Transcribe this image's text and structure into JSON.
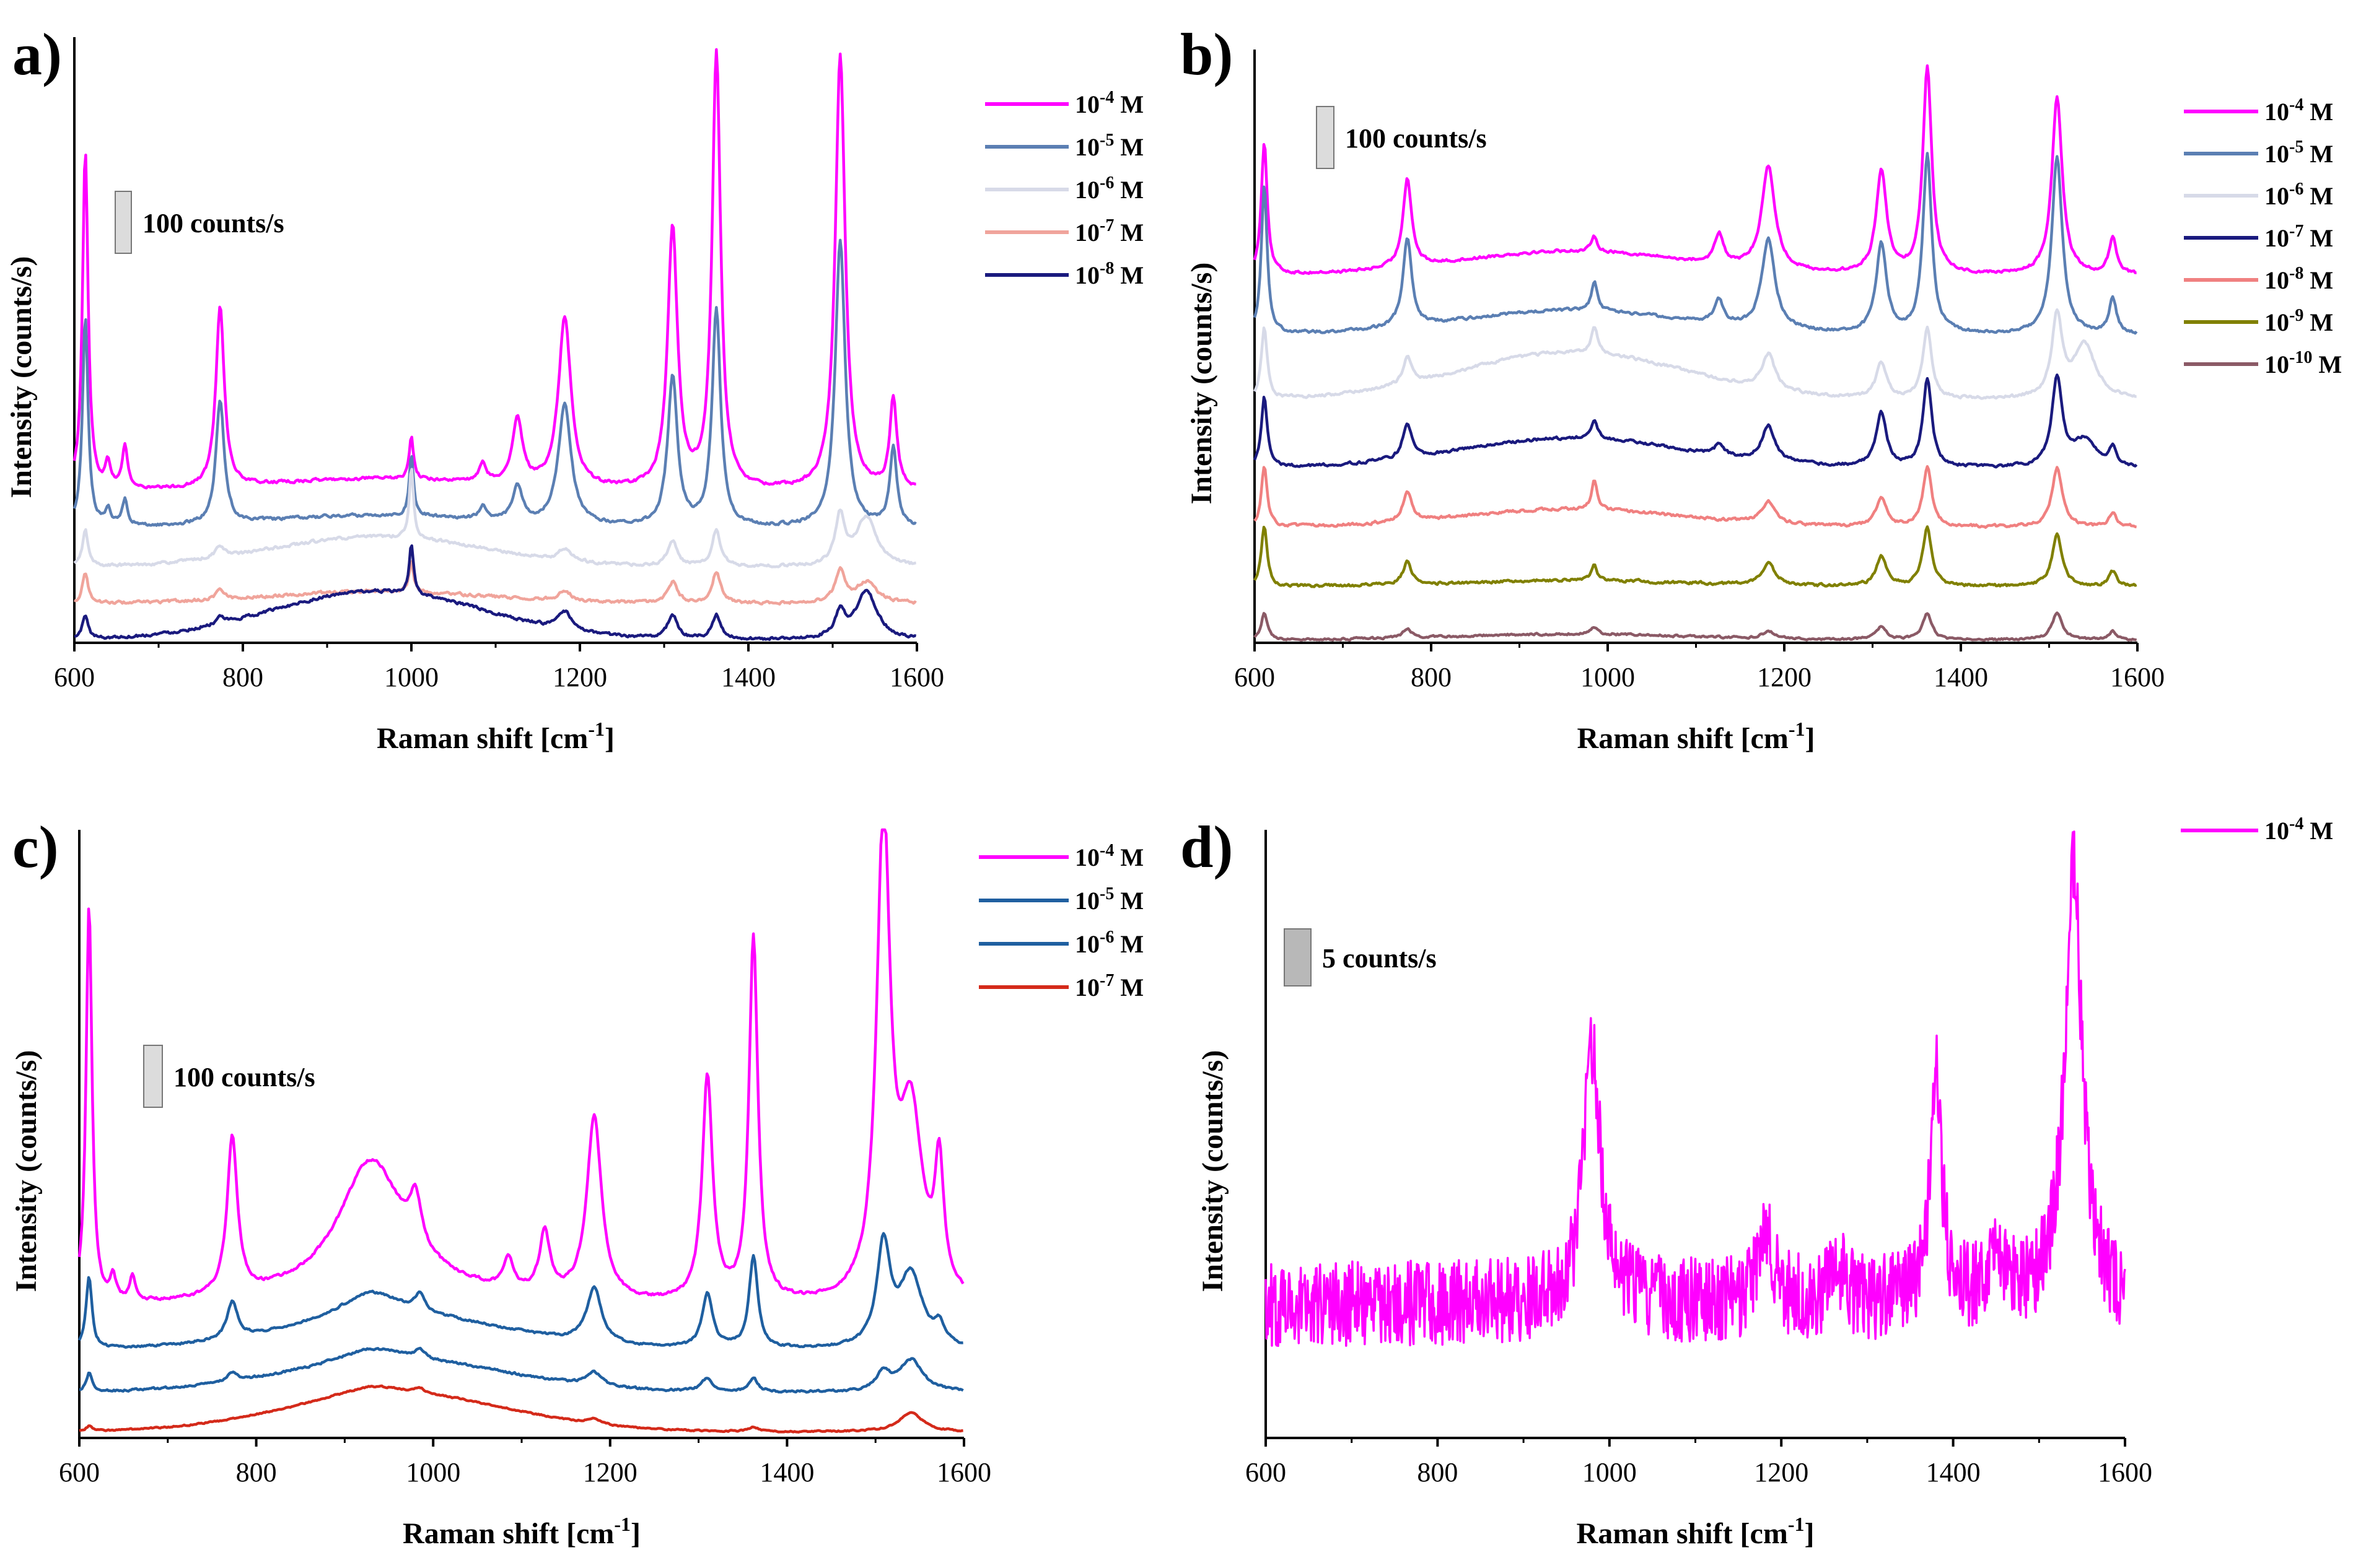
{
  "figure": {
    "x_axis_title": "Raman shift [cm",
    "x_axis_unit_exp": "-1",
    "x_axis_close": "]",
    "y_axis_title": "Intensity (counts/s)"
  },
  "chart_data": [
    {
      "type": "line",
      "panel_label": "a)",
      "xlabel": "Raman shift [cm-1]",
      "ylabel": "Intensity (counts/s)",
      "xlim": [
        600,
        1600
      ],
      "xticks": [
        "600",
        "800",
        "1000",
        "1200",
        "1400",
        "1600"
      ],
      "ylim": [
        0,
        1
      ],
      "scale_bar": {
        "label": "100 counts/s",
        "value_counts_per_s": 100,
        "height_in_y_units": 0.07
      },
      "series": [
        {
          "name": "10-4 M",
          "base": "10",
          "exp": "-4",
          "unit": "M",
          "color": "#ff00ff",
          "offset": 0.25,
          "amp": 1.0,
          "noise": 0.004,
          "broad": 0.02,
          "peaks": [
            [
              613,
              0.56,
              4
            ],
            [
              640,
              0.04,
              4
            ],
            [
              660,
              0.07,
              4
            ],
            [
              773,
              0.3,
              6
            ],
            [
              1000,
              0.07,
              3
            ],
            [
              1085,
              0.03,
              5
            ],
            [
              1126,
              0.11,
              7
            ],
            [
              1182,
              0.28,
              9
            ],
            [
              1310,
              0.43,
              7
            ],
            [
              1362,
              0.72,
              6
            ],
            [
              1509,
              0.72,
              7
            ],
            [
              1572,
              0.15,
              5
            ]
          ]
        },
        {
          "name": "10-5 M",
          "base": "10",
          "exp": "-5",
          "unit": "M",
          "color": "#5b7fb3",
          "offset": 0.19,
          "amp": 0.72,
          "noise": 0.004,
          "broad": 0.02,
          "peaks": [
            [
              613,
              0.48,
              4
            ],
            [
              640,
              0.04,
              4
            ],
            [
              660,
              0.06,
              4
            ],
            [
              773,
              0.28,
              6
            ],
            [
              1000,
              0.14,
              3
            ],
            [
              1085,
              0.03,
              5
            ],
            [
              1126,
              0.08,
              7
            ],
            [
              1182,
              0.28,
              9
            ],
            [
              1310,
              0.34,
              7
            ],
            [
              1362,
              0.5,
              6
            ],
            [
              1509,
              0.66,
              7
            ],
            [
              1572,
              0.18,
              5
            ]
          ]
        },
        {
          "name": "10-6 M",
          "base": "10",
          "exp": "-6",
          "unit": "M",
          "color": "#d7dae8",
          "offset": 0.125,
          "amp": 0.2,
          "noise": 0.004,
          "broad": 0.05,
          "peaks": [
            [
              613,
              0.3,
              4
            ],
            [
              773,
              0.1,
              6
            ],
            [
              1000,
              0.6,
              3
            ],
            [
              1182,
              0.1,
              9
            ],
            [
              1310,
              0.2,
              7
            ],
            [
              1362,
              0.3,
              6
            ],
            [
              1509,
              0.4,
              7
            ],
            [
              1540,
              0.4,
              15
            ]
          ]
        },
        {
          "name": "10-7 M",
          "base": "10",
          "exp": "-7",
          "unit": "M",
          "color": "#f0a49b",
          "offset": 0.065,
          "amp": 0.17,
          "noise": 0.004,
          "broad": 0.02,
          "peaks": [
            [
              613,
              0.3,
              4
            ],
            [
              773,
              0.1,
              6
            ],
            [
              1000,
              0.3,
              3
            ],
            [
              1182,
              0.1,
              9
            ],
            [
              1310,
              0.2,
              7
            ],
            [
              1362,
              0.3,
              6
            ],
            [
              1509,
              0.3,
              7
            ],
            [
              1540,
              0.2,
              15
            ]
          ]
        },
        {
          "name": "10-8 M",
          "base": "10",
          "exp": "-8",
          "unit": "M",
          "color": "#1a1a7e",
          "offset": 0.005,
          "amp": 0.2,
          "noise": 0.004,
          "broad": 0.08,
          "peaks": [
            [
              613,
              0.2,
              4
            ],
            [
              773,
              0.05,
              6
            ],
            [
              1000,
              0.4,
              3
            ],
            [
              1182,
              0.15,
              9
            ],
            [
              1310,
              0.2,
              7
            ],
            [
              1362,
              0.2,
              6
            ],
            [
              1509,
              0.2,
              7
            ],
            [
              1540,
              0.4,
              15
            ]
          ]
        }
      ]
    },
    {
      "type": "line",
      "panel_label": "b)",
      "xlabel": "Raman shift [cm-1]",
      "ylabel": "Intensity (counts/s)",
      "xlim": [
        600,
        1600
      ],
      "xticks": [
        "600",
        "800",
        "1000",
        "1200",
        "1400",
        "1600"
      ],
      "ylim": [
        0,
        1
      ],
      "scale_bar": {
        "label": "100 counts/s",
        "value_counts_per_s": 100,
        "height_in_y_units": 0.07
      },
      "series": [
        {
          "name": "10-4 M",
          "base": "10",
          "exp": "-4",
          "unit": "M",
          "color": "#ff00ff",
          "offset": 0.62,
          "amp": 0.5,
          "noise": 0.004,
          "broad": 0.04,
          "peaks": [
            [
              611,
              0.45,
              4
            ],
            [
              773,
              0.3,
              6
            ],
            [
              985,
              0.05,
              4
            ],
            [
              1126,
              0.1,
              6
            ],
            [
              1182,
              0.35,
              9
            ],
            [
              1310,
              0.35,
              7
            ],
            [
              1362,
              0.7,
              6
            ],
            [
              1509,
              0.6,
              7
            ],
            [
              1572,
              0.12,
              5
            ]
          ]
        },
        {
          "name": "10-5 M",
          "base": "10",
          "exp": "-5",
          "unit": "M",
          "color": "#5b7fb3",
          "offset": 0.52,
          "amp": 0.5,
          "noise": 0.004,
          "broad": 0.04,
          "peaks": [
            [
              611,
              0.5,
              4
            ],
            [
              773,
              0.3,
              6
            ],
            [
              985,
              0.1,
              4
            ],
            [
              1126,
              0.08,
              6
            ],
            [
              1182,
              0.3,
              9
            ],
            [
              1310,
              0.3,
              7
            ],
            [
              1362,
              0.6,
              6
            ],
            [
              1509,
              0.6,
              7
            ],
            [
              1572,
              0.12,
              5
            ]
          ]
        },
        {
          "name": "10-6 M",
          "base": "10",
          "exp": "-6",
          "unit": "M",
          "color": "#d7dae8",
          "offset": 0.41,
          "amp": 0.3,
          "noise": 0.004,
          "broad": 0.08,
          "peaks": [
            [
              611,
              0.4,
              4
            ],
            [
              773,
              0.15,
              6
            ],
            [
              985,
              0.15,
              4
            ],
            [
              1182,
              0.2,
              9
            ],
            [
              1310,
              0.2,
              7
            ],
            [
              1362,
              0.4,
              6
            ],
            [
              1509,
              0.45,
              7
            ],
            [
              1540,
              0.3,
              15
            ]
          ]
        },
        {
          "name": "10-7 M",
          "base": "10",
          "exp": "-7",
          "unit": "M",
          "color": "#1a1a7e",
          "offset": 0.295,
          "amp": 0.3,
          "noise": 0.004,
          "broad": 0.05,
          "peaks": [
            [
              611,
              0.4,
              4
            ],
            [
              773,
              0.2,
              6
            ],
            [
              985,
              0.1,
              4
            ],
            [
              1126,
              0.06,
              6
            ],
            [
              1182,
              0.2,
              9
            ],
            [
              1310,
              0.3,
              7
            ],
            [
              1362,
              0.5,
              6
            ],
            [
              1509,
              0.5,
              7
            ],
            [
              1540,
              0.15,
              15
            ],
            [
              1572,
              0.1,
              5
            ]
          ]
        },
        {
          "name": "10-8 M",
          "base": "10",
          "exp": "-8",
          "unit": "M",
          "color": "#f08080",
          "offset": 0.195,
          "amp": 0.25,
          "noise": 0.004,
          "broad": 0.03,
          "peaks": [
            [
              611,
              0.4,
              4
            ],
            [
              773,
              0.2,
              6
            ],
            [
              985,
              0.2,
              4
            ],
            [
              1182,
              0.15,
              9
            ],
            [
              1310,
              0.2,
              7
            ],
            [
              1362,
              0.4,
              6
            ],
            [
              1509,
              0.4,
              7
            ],
            [
              1572,
              0.1,
              5
            ]
          ]
        },
        {
          "name": "10-9 M",
          "base": "10",
          "exp": "-9",
          "unit": "M",
          "color": "#808000",
          "offset": 0.095,
          "amp": 0.25,
          "noise": 0.004,
          "broad": 0.01,
          "peaks": [
            [
              611,
              0.4,
              4
            ],
            [
              773,
              0.15,
              6
            ],
            [
              985,
              0.1,
              4
            ],
            [
              1182,
              0.15,
              9
            ],
            [
              1310,
              0.2,
              7
            ],
            [
              1362,
              0.4,
              6
            ],
            [
              1509,
              0.35,
              7
            ],
            [
              1572,
              0.1,
              5
            ]
          ]
        },
        {
          "name": "10-10 M",
          "base": "10",
          "exp": "-10",
          "unit": "M",
          "color": "#8b5a66",
          "offset": 0.005,
          "amp": 0.15,
          "noise": 0.003,
          "broad": 0.01,
          "peaks": [
            [
              611,
              0.3,
              4
            ],
            [
              773,
              0.1,
              6
            ],
            [
              985,
              0.08,
              4
            ],
            [
              1182,
              0.08,
              9
            ],
            [
              1310,
              0.15,
              7
            ],
            [
              1362,
              0.3,
              6
            ],
            [
              1509,
              0.3,
              7
            ],
            [
              1572,
              0.1,
              5
            ]
          ]
        }
      ]
    },
    {
      "type": "line",
      "panel_label": "c)",
      "xlabel": "Raman shift [cm-1]",
      "ylabel": "Intensity (counts/s)",
      "xlim": [
        600,
        1600
      ],
      "xticks": [
        "600",
        "800",
        "1000",
        "1200",
        "1400",
        "1600"
      ],
      "ylim": [
        0,
        1
      ],
      "scale_bar": {
        "label": "100 counts/s",
        "value_counts_per_s": 100,
        "height_in_y_units": 0.1
      },
      "series": [
        {
          "name": "10-4 M",
          "base": "10",
          "exp": "-4",
          "unit": "M",
          "color": "#ff00ff",
          "offset": 0.215,
          "amp": 1.0,
          "noise": 0.004,
          "broad": 0.02,
          "peaks": [
            [
              611,
              0.66,
              4
            ],
            [
              638,
              0.04,
              4
            ],
            [
              660,
              0.04,
              4
            ],
            [
              773,
              0.26,
              7
            ],
            [
              930,
              0.22,
              45
            ],
            [
              980,
              0.08,
              8
            ],
            [
              1085,
              0.05,
              6
            ],
            [
              1126,
              0.1,
              7
            ],
            [
              1182,
              0.3,
              10
            ],
            [
              1310,
              0.37,
              7
            ],
            [
              1362,
              0.6,
              6
            ],
            [
              1509,
              0.78,
              9
            ],
            [
              1540,
              0.3,
              16
            ],
            [
              1572,
              0.2,
              6
            ]
          ]
        },
        {
          "name": "10-5 M",
          "base": "10",
          "exp": "-5",
          "unit": "M",
          "color": "#1f5fa0",
          "offset": 0.145,
          "amp": 0.3,
          "noise": 0.003,
          "broad": 0.05,
          "peaks": [
            [
              611,
              0.4,
              4
            ],
            [
              773,
              0.2,
              7
            ],
            [
              930,
              0.15,
              45
            ],
            [
              985,
              0.1,
              6
            ],
            [
              1182,
              0.3,
              10
            ],
            [
              1310,
              0.3,
              7
            ],
            [
              1362,
              0.5,
              6
            ],
            [
              1509,
              0.55,
              9
            ],
            [
              1540,
              0.4,
              16
            ],
            [
              1572,
              0.1,
              6
            ]
          ]
        },
        {
          "name": "10-6 M",
          "base": "10",
          "exp": "-6",
          "unit": "M",
          "color": "#1f5fa0",
          "offset": 0.075,
          "amp": 0.15,
          "noise": 0.003,
          "broad": 0.05,
          "peaks": [
            [
              611,
              0.2,
              4
            ],
            [
              773,
              0.1,
              7
            ],
            [
              930,
              0.15,
              45
            ],
            [
              985,
              0.1,
              6
            ],
            [
              1182,
              0.15,
              10
            ],
            [
              1310,
              0.15,
              7
            ],
            [
              1362,
              0.15,
              6
            ],
            [
              1509,
              0.2,
              9
            ],
            [
              1540,
              0.35,
              16
            ]
          ]
        },
        {
          "name": "10-7 M",
          "base": "10",
          "exp": "-7",
          "unit": "M",
          "color": "#d42a1a",
          "offset": 0.01,
          "amp": 0.08,
          "noise": 0.002,
          "broad": 0.06,
          "peaks": [
            [
              611,
              0.1,
              4
            ],
            [
              930,
              0.2,
              45
            ],
            [
              985,
              0.1,
              6
            ],
            [
              1182,
              0.1,
              10
            ],
            [
              1362,
              0.1,
              6
            ],
            [
              1540,
              0.4,
              16
            ]
          ]
        }
      ]
    },
    {
      "type": "line",
      "panel_label": "d)",
      "xlabel": "Raman shift [cm-1]",
      "ylabel": "Intensity (counts/s)",
      "xlim": [
        600,
        1600
      ],
      "xticks": [
        "600",
        "800",
        "1000",
        "1200",
        "1400",
        "1600"
      ],
      "ylim": [
        0,
        1
      ],
      "scale_bar": {
        "label": "5 counts/s",
        "value_counts_per_s": 5,
        "height_in_y_units": 0.09
      },
      "series": [
        {
          "name": "10-4 M",
          "base": "10",
          "exp": "-4",
          "unit": "M",
          "color": "#ff00ff",
          "offset": 0.22,
          "amp": 1.0,
          "noise": 0.07,
          "broad": 0.0,
          "peaks": [
            [
              980,
              0.42,
              12
            ],
            [
              1182,
              0.12,
              10
            ],
            [
              1265,
              0.06,
              10
            ],
            [
              1380,
              0.37,
              8
            ],
            [
              1450,
              0.08,
              12
            ],
            [
              1540,
              0.72,
              12
            ]
          ]
        }
      ]
    }
  ]
}
